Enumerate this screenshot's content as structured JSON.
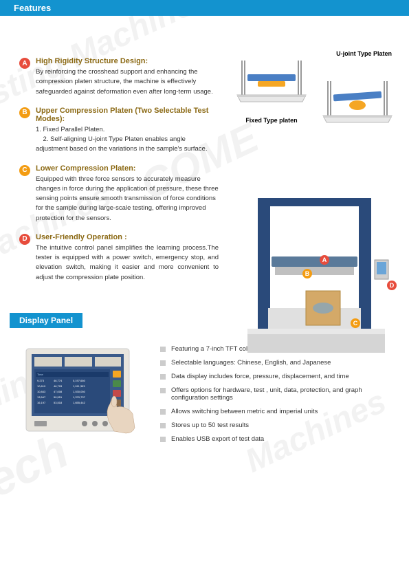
{
  "header": "Features",
  "features": [
    {
      "bullet": "A",
      "bulletClass": "bullet-a",
      "title": "High Rigidity Structure Design:",
      "desc": "By reinforcing the crosshead support and enhancing the compression platen structure, the machine is effectively safeguarded against deformation even after long-term usage."
    },
    {
      "bullet": "B",
      "bulletClass": "bullet-b",
      "title": "Upper Compression Platen (Two Selectable Test Modes):",
      "desc": "1. Fixed Parallel Platen.\n2. Self-aligning U-joint Type Platen enables angle adjustment based on the variations in the sample's surface."
    },
    {
      "bullet": "C",
      "bulletClass": "bullet-c",
      "title": "Lower Compression Platen:",
      "desc": "Equipped with three force sensors to accurately measure changes in force during the application of pressure, these three sensing points ensure smooth transmission of force conditions for the sample during large-scale testing, offering improved protection for the sensors."
    },
    {
      "bullet": "D",
      "bulletClass": "bullet-d",
      "title": "User-Friendly Operation :",
      "desc": "The intuitive control panel simplifies the learning process.The tester is equipped with a power switch, emergency stop, and elevation switch, making it easier and more convenient to adjust the compression plate position.",
      "justified": true
    }
  ],
  "platens": {
    "fixed_label": "Fixed Type platen",
    "ujoint_label": "U-joint Type Platen"
  },
  "section2": "Display Panel",
  "display_items": [
    "Featuring a 7-inch TFT color display panel",
    "Selectable languages: Chinese, English, and Japanese",
    "Data display includes force, pressure, displacement, and time",
    "Offers options for hardware, test , unit, data, protection, and graph configuration settings",
    "Allows switching between metric and imperial units",
    "Stores up to 50 test results",
    "Enables USB export of test data"
  ],
  "colors": {
    "header_bg": "#1393cf",
    "title_brown": "#8b6914",
    "bullet_red": "#e74c3c",
    "bullet_orange": "#f39c12"
  },
  "callouts": [
    "A",
    "B",
    "C",
    "D"
  ]
}
